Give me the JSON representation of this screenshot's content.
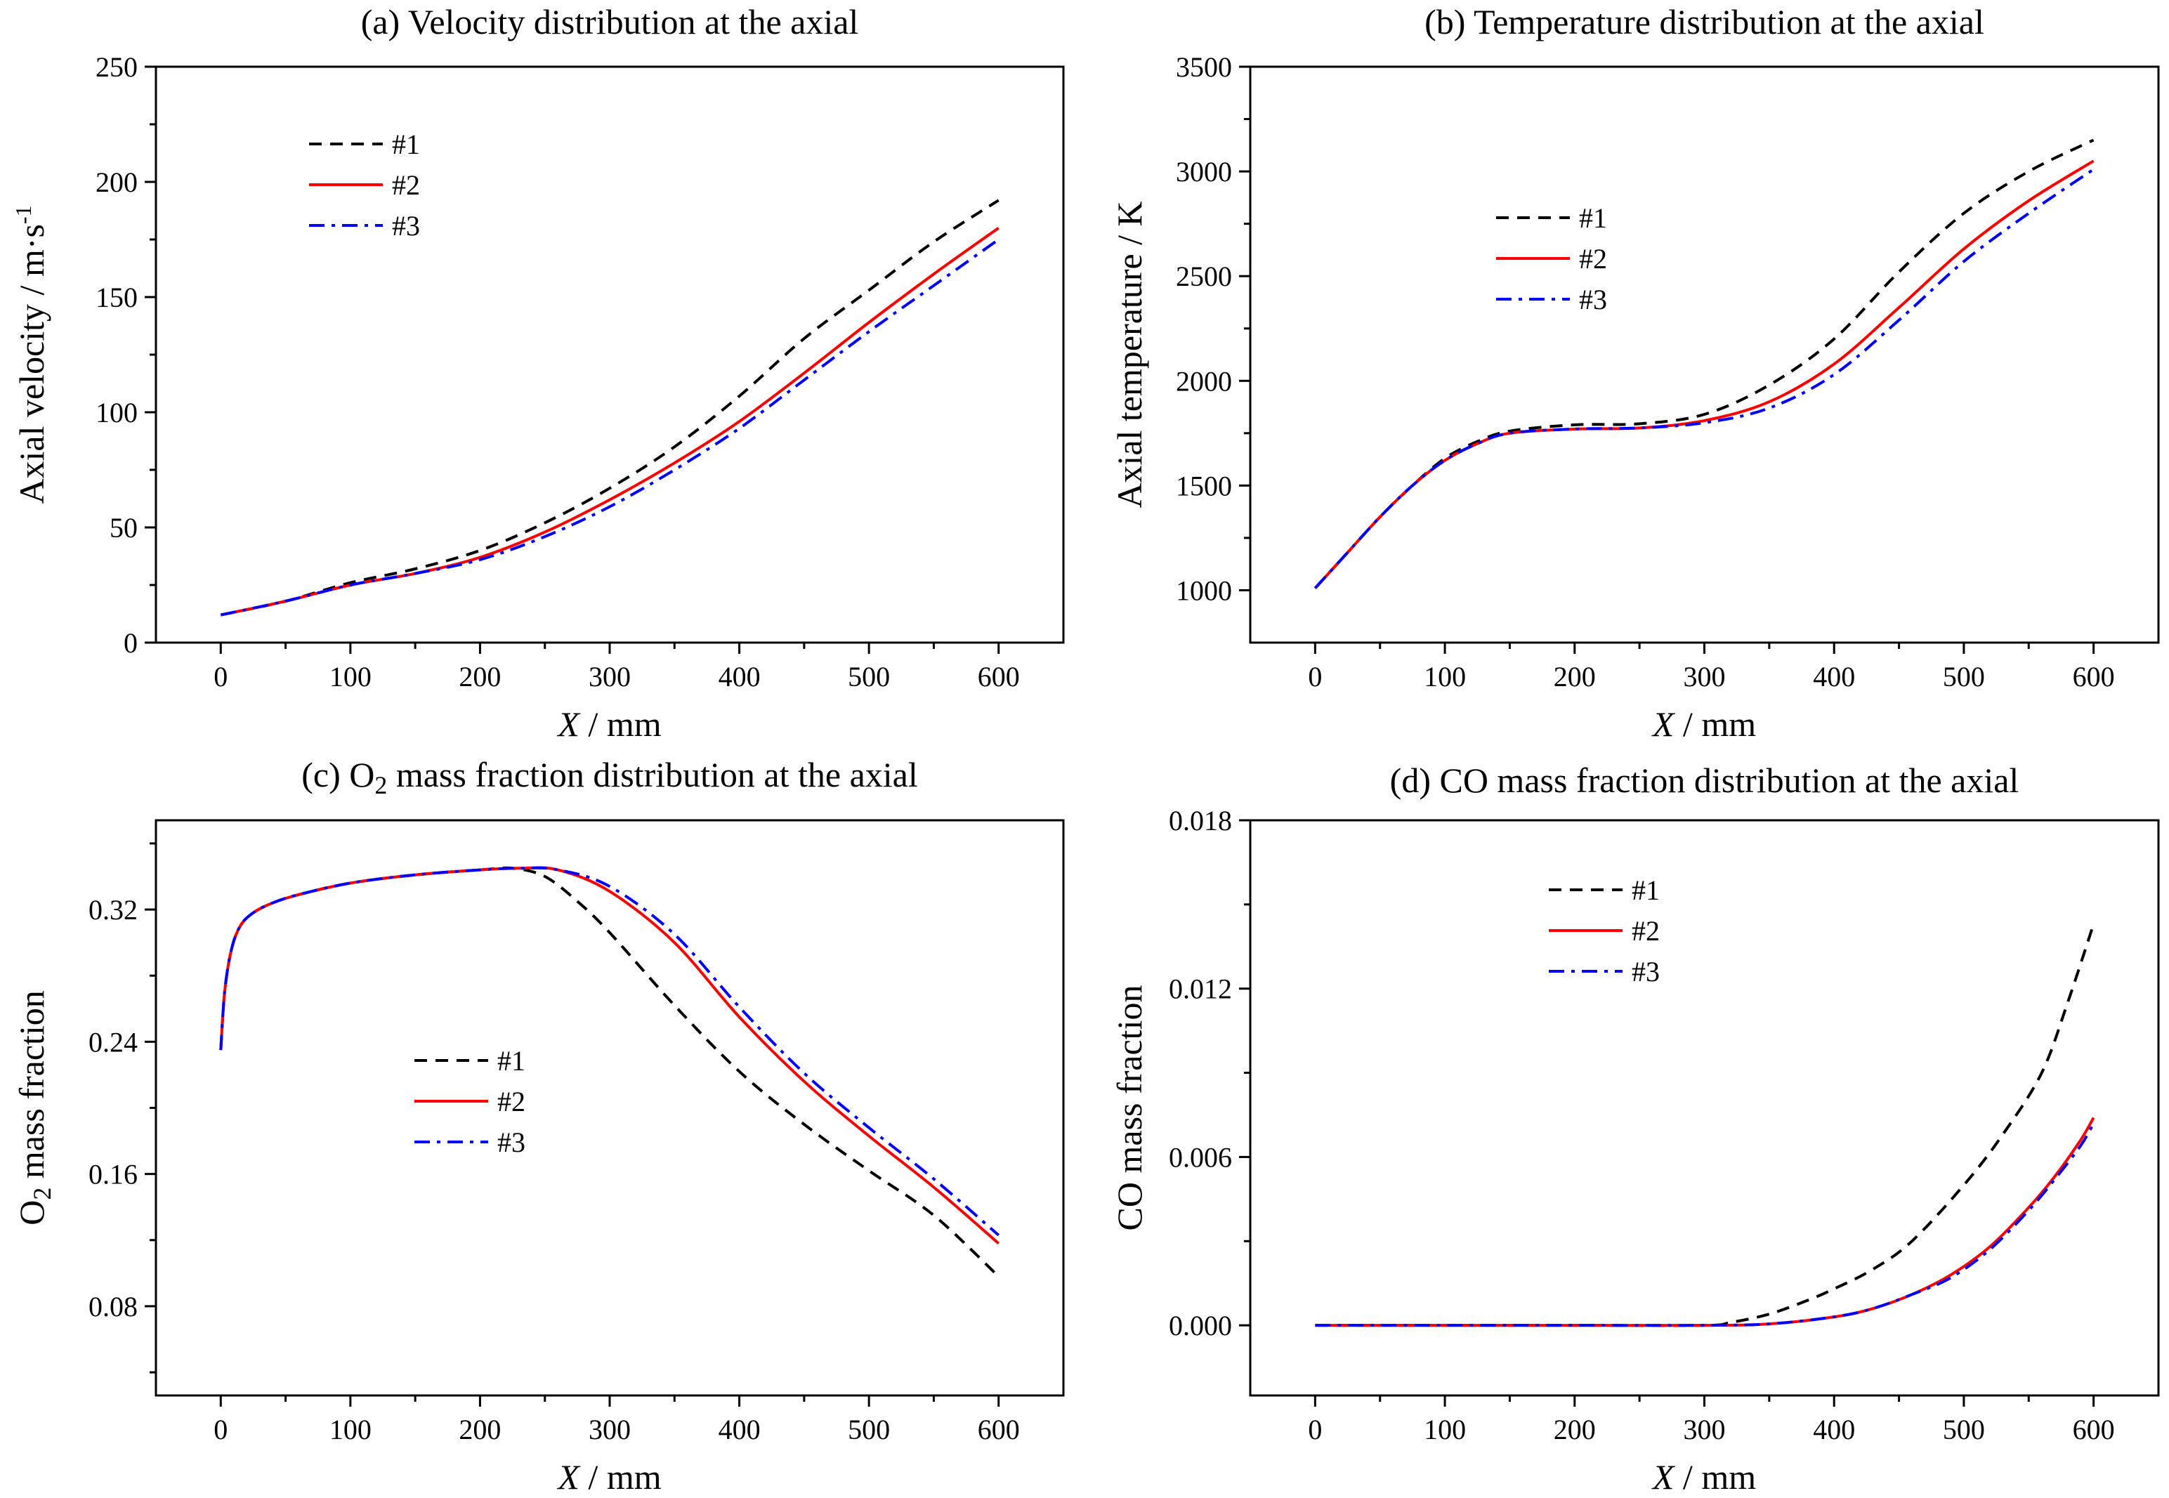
{
  "colors": {
    "s1": "#000000",
    "s2": "#ff0000",
    "s3": "#0000ff"
  },
  "chart_data": [
    {
      "type": "line",
      "title": "(a) Velocity distribution at the axial",
      "xlabel_italic": "X",
      "xlabel_rest": " / mm",
      "ylabel": "Axial velocity  / m·s",
      "ylabel_sup": "-1",
      "xlim": [
        -50,
        650
      ],
      "ylim": [
        0,
        250
      ],
      "xticks": [
        0,
        100,
        200,
        300,
        400,
        500,
        600
      ],
      "yticks": [
        0,
        50,
        100,
        150,
        200,
        250
      ],
      "legend_position": "upper-left",
      "series": [
        {
          "name": "#1",
          "style": "dashed",
          "x": [
            0,
            50,
            100,
            150,
            200,
            250,
            300,
            350,
            400,
            450,
            500,
            550,
            600
          ],
          "y": [
            12,
            18,
            26,
            32,
            40,
            52,
            67,
            85,
            107,
            132,
            153,
            174,
            192
          ]
        },
        {
          "name": "#2",
          "style": "solid",
          "x": [
            0,
            50,
            100,
            150,
            200,
            250,
            300,
            350,
            400,
            450,
            500,
            550,
            600
          ],
          "y": [
            12,
            18,
            25,
            30,
            37,
            48,
            62,
            78,
            96,
            117,
            139,
            160,
            180
          ]
        },
        {
          "name": "#3",
          "style": "dashdot",
          "x": [
            0,
            50,
            100,
            150,
            200,
            250,
            300,
            350,
            400,
            450,
            500,
            550,
            600
          ],
          "y": [
            12,
            18,
            25,
            30,
            36,
            46,
            59,
            75,
            93,
            114,
            135,
            155,
            175
          ]
        }
      ]
    },
    {
      "type": "line",
      "title": "(b) Temperature distribution at the axial",
      "xlabel_italic": "X",
      "xlabel_rest": " / mm",
      "ylabel": "Axial temperature  / K",
      "ylabel_sup": "",
      "xlim": [
        -50,
        650
      ],
      "ylim": [
        750,
        3500
      ],
      "xticks": [
        0,
        100,
        200,
        300,
        400,
        500,
        600
      ],
      "yticks": [
        1000,
        1500,
        2000,
        2500,
        3000,
        3500
      ],
      "legend_position": "center-left",
      "series": [
        {
          "name": "#1",
          "style": "dashed",
          "x": [
            0,
            25,
            50,
            75,
            100,
            125,
            150,
            200,
            250,
            300,
            350,
            400,
            450,
            500,
            550,
            600
          ],
          "y": [
            1010,
            1180,
            1350,
            1500,
            1630,
            1710,
            1760,
            1790,
            1795,
            1840,
            1980,
            2200,
            2520,
            2800,
            3000,
            3150
          ]
        },
        {
          "name": "#2",
          "style": "solid",
          "x": [
            0,
            25,
            50,
            75,
            100,
            125,
            150,
            200,
            250,
            300,
            350,
            400,
            450,
            500,
            550,
            600
          ],
          "y": [
            1010,
            1180,
            1350,
            1500,
            1620,
            1700,
            1750,
            1770,
            1775,
            1810,
            1900,
            2080,
            2350,
            2630,
            2860,
            3050
          ]
        },
        {
          "name": "#3",
          "style": "dashdot",
          "x": [
            0,
            25,
            50,
            75,
            100,
            125,
            150,
            200,
            250,
            300,
            350,
            400,
            450,
            500,
            550,
            600
          ],
          "y": [
            1010,
            1180,
            1350,
            1500,
            1620,
            1700,
            1750,
            1770,
            1775,
            1800,
            1870,
            2030,
            2290,
            2570,
            2800,
            3010
          ]
        }
      ]
    },
    {
      "type": "line",
      "title_pre": "(c) O",
      "title_sub": "2",
      "title_post": " mass fraction distribution at the axial",
      "xlabel_italic": "X",
      "xlabel_rest": " / mm",
      "ylabel_pre": "O",
      "ylabel_sub": "2",
      "ylabel_post": " mass fraction",
      "xlim": [
        -50,
        650
      ],
      "ylim": [
        0.026,
        0.374
      ],
      "xticks": [
        0,
        100,
        200,
        300,
        400,
        500,
        600
      ],
      "yticks": [
        0.08,
        0.16,
        0.24,
        0.32
      ],
      "ytick_labels": [
        "0.08",
        "0.16",
        "0.24",
        "0.32"
      ],
      "legend_position": "center",
      "series": [
        {
          "name": "#1",
          "style": "dashed",
          "x": [
            0,
            3,
            8,
            15,
            25,
            40,
            60,
            100,
            150,
            200,
            225,
            250,
            275,
            300,
            350,
            400,
            450,
            500,
            550,
            600
          ],
          "y": [
            0.235,
            0.27,
            0.295,
            0.31,
            0.318,
            0.324,
            0.329,
            0.336,
            0.341,
            0.344,
            0.345,
            0.34,
            0.325,
            0.306,
            0.262,
            0.222,
            0.19,
            0.162,
            0.135,
            0.098
          ]
        },
        {
          "name": "#2",
          "style": "solid",
          "x": [
            0,
            3,
            8,
            15,
            25,
            40,
            60,
            100,
            150,
            200,
            230,
            260,
            300,
            350,
            400,
            450,
            500,
            550,
            600
          ],
          "y": [
            0.235,
            0.27,
            0.295,
            0.31,
            0.318,
            0.324,
            0.329,
            0.336,
            0.341,
            0.344,
            0.345,
            0.344,
            0.331,
            0.3,
            0.255,
            0.216,
            0.183,
            0.152,
            0.118
          ]
        },
        {
          "name": "#3",
          "style": "dashdot",
          "x": [
            0,
            3,
            8,
            15,
            25,
            40,
            60,
            100,
            150,
            200,
            230,
            260,
            300,
            350,
            400,
            450,
            500,
            550,
            600
          ],
          "y": [
            0.235,
            0.27,
            0.295,
            0.31,
            0.318,
            0.324,
            0.329,
            0.336,
            0.341,
            0.344,
            0.345,
            0.344,
            0.334,
            0.305,
            0.261,
            0.221,
            0.188,
            0.157,
            0.123
          ]
        }
      ]
    },
    {
      "type": "line",
      "title": "(d) CO mass fraction distribution at the axial",
      "xlabel_italic": "X",
      "xlabel_rest": " / mm",
      "ylabel": "CO mass fraction",
      "ylabel_sup": "",
      "xlim": [
        -50,
        650
      ],
      "ylim": [
        -0.0025,
        0.018
      ],
      "xticks": [
        0,
        100,
        200,
        300,
        400,
        500,
        600
      ],
      "yticks": [
        0.0,
        0.006,
        0.012,
        0.018
      ],
      "ytick_labels": [
        "0.000",
        "0.006",
        "0.012",
        "0.018"
      ],
      "legend_position": "upper-left",
      "series": [
        {
          "name": "#1",
          "style": "dashed",
          "x": [
            0,
            100,
            200,
            300,
            320,
            350,
            380,
            400,
            430,
            460,
            500,
            530,
            560,
            580,
            600
          ],
          "y": [
            0,
            0,
            0,
            0,
            0.0001,
            0.0004,
            0.0009,
            0.0013,
            0.002,
            0.003,
            0.005,
            0.0068,
            0.009,
            0.0115,
            0.0143
          ]
        },
        {
          "name": "#2",
          "style": "solid",
          "x": [
            0,
            100,
            200,
            300,
            350,
            400,
            430,
            460,
            490,
            520,
            550,
            570,
            590,
            600
          ],
          "y": [
            0,
            0,
            0,
            0,
            5e-05,
            0.0003,
            0.0006,
            0.0011,
            0.0018,
            0.0028,
            0.0042,
            0.0053,
            0.0066,
            0.0074
          ]
        },
        {
          "name": "#3",
          "style": "dashdot",
          "x": [
            0,
            100,
            200,
            300,
            350,
            400,
            430,
            460,
            490,
            520,
            550,
            570,
            590,
            600
          ],
          "y": [
            0,
            0,
            0,
            0,
            5e-05,
            0.0003,
            0.0006,
            0.0011,
            0.0017,
            0.0027,
            0.0041,
            0.0052,
            0.0064,
            0.0072
          ]
        }
      ]
    }
  ]
}
